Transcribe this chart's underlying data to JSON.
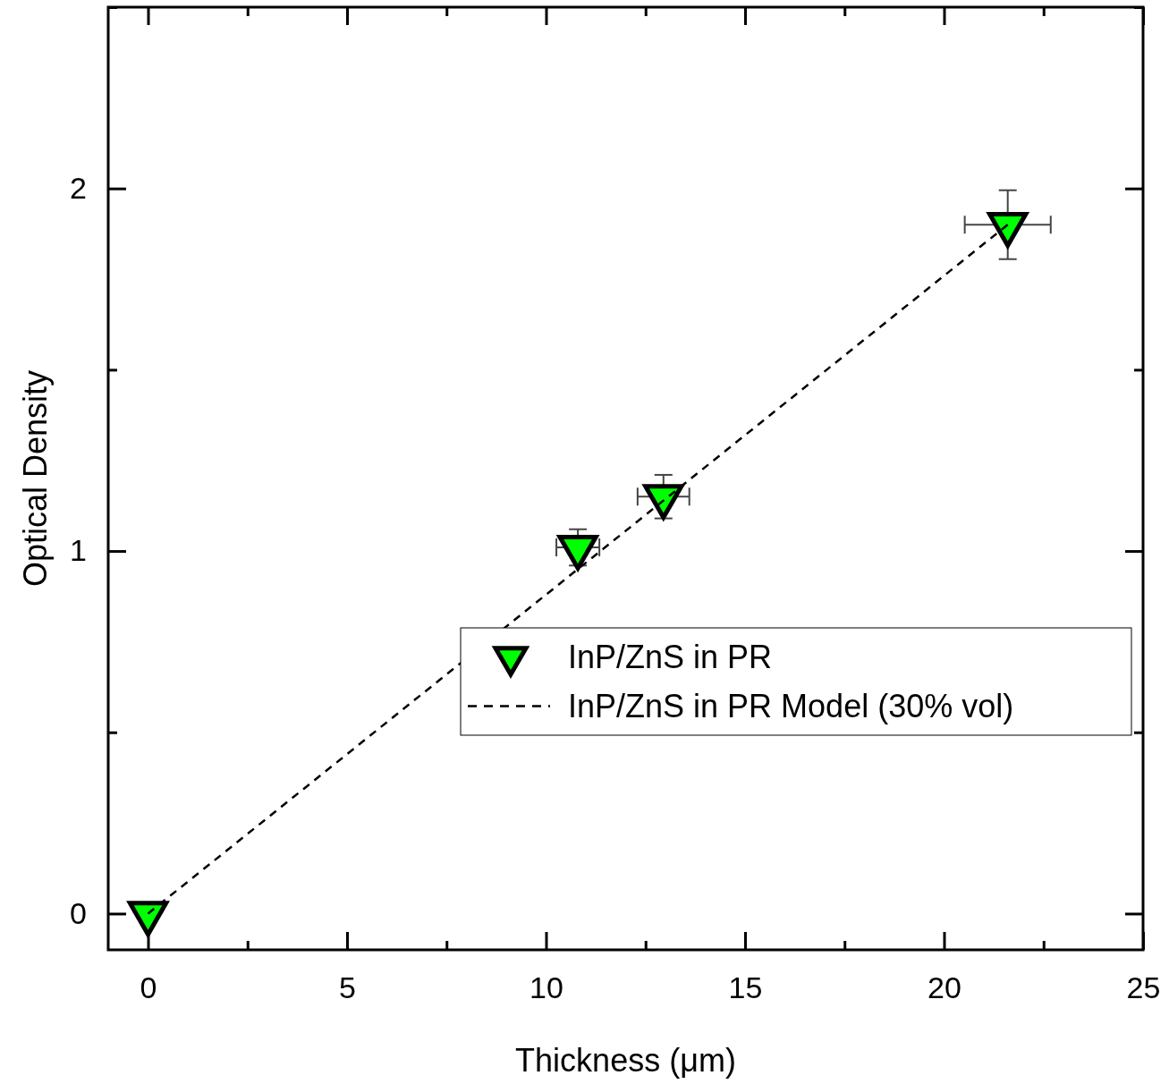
{
  "chart_data": {
    "type": "scatter",
    "xlabel": "Thickness (μm)",
    "ylabel": "Optical Density",
    "xlim": [
      -1,
      25
    ],
    "ylim": [
      -0.1,
      2.5
    ],
    "xticks": [
      0,
      {
        "value": 2.5,
        "label": null
      },
      5,
      {
        "value": 7.5,
        "label": null
      },
      10,
      {
        "value": 12.5,
        "label": null
      },
      15,
      {
        "value": 17.5,
        "label": null
      },
      20,
      {
        "value": 22.5,
        "label": null
      },
      25
    ],
    "yticks": [
      0,
      {
        "value": 0.5,
        "label": null
      },
      1,
      {
        "value": 1.5,
        "label": null
      },
      2,
      {
        "value": 2.5,
        "label": null
      }
    ],
    "grid": false,
    "legend": "right",
    "series": [
      {
        "name": "InP/ZnS in PR",
        "type": "scatter",
        "color": "#00ff00",
        "marker": "triangle",
        "x": [
          0,
          10.8,
          12.95,
          21.6
        ],
        "values": [
          0,
          1.01,
          1.15,
          1.9
        ],
        "errors": [
          null,
          0.05,
          0.06,
          0.095
        ],
        "xerrors": [
          null,
          0.54,
          0.65,
          1.08
        ]
      },
      {
        "name": "InP/ZnS in PR Model (30% vol)",
        "type": "line",
        "color": "#000000",
        "line_style": "dashed",
        "marker": "none",
        "x": [
          0,
          21.6
        ],
        "values": [
          0,
          1.9
        ]
      }
    ]
  }
}
